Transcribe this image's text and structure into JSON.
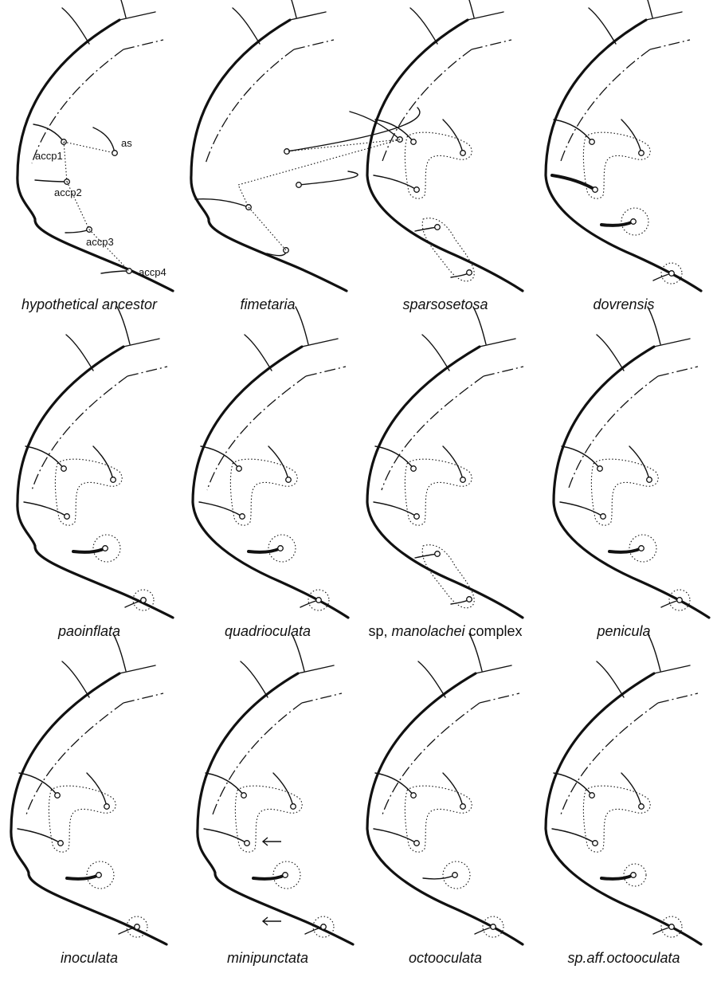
{
  "labels": {
    "as": "as",
    "accp1": "accp1",
    "accp2": "accp2",
    "accp3": "accp3",
    "accp4": "accp4"
  },
  "panels": [
    {
      "parts": [
        {
          "text": "hypothetical ancestor",
          "italic": true
        }
      ]
    },
    {
      "parts": [
        {
          "text": "fimetaria",
          "italic": true
        }
      ]
    },
    {
      "parts": [
        {
          "text": "sparsosetosa",
          "italic": true
        }
      ]
    },
    {
      "parts": [
        {
          "text": "dovrensis",
          "italic": true
        }
      ]
    },
    {
      "parts": [
        {
          "text": "paoinflata",
          "italic": true
        }
      ]
    },
    {
      "parts": [
        {
          "text": "quadrioculata",
          "italic": true
        }
      ]
    },
    {
      "parts": [
        {
          "text": "sp, ",
          "italic": false
        },
        {
          "text": "manolachei",
          "italic": true
        },
        {
          "text": " complex",
          "italic": false
        }
      ]
    },
    {
      "parts": [
        {
          "text": "penicula",
          "italic": true
        }
      ]
    },
    {
      "parts": [
        {
          "text": "inoculata",
          "italic": true
        }
      ]
    },
    {
      "parts": [
        {
          "text": "minipunctata",
          "italic": true
        }
      ]
    },
    {
      "parts": [
        {
          "text": "octooculata",
          "italic": true
        }
      ]
    },
    {
      "parts": [
        {
          "text": "sp.aff.octooculata",
          "italic": true
        }
      ]
    }
  ]
}
